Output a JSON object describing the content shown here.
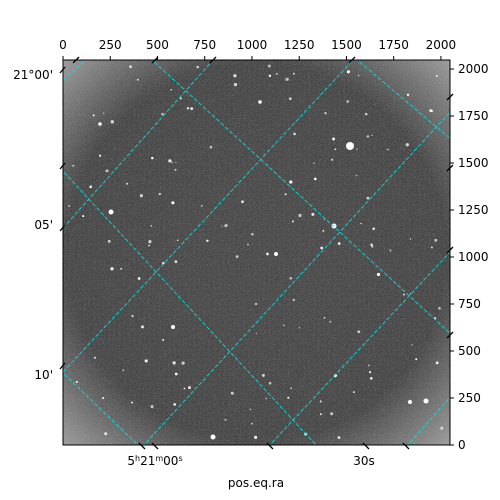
{
  "plot": {
    "xlabel": "pos.eq.ra",
    "pixel_x_ticks": [
      "0",
      "250",
      "500",
      "750",
      "1000",
      "1250",
      "1500",
      "1750",
      "2000"
    ],
    "pixel_y_ticks": [
      "0",
      "250",
      "500",
      "750",
      "1000",
      "1250",
      "1500",
      "1750",
      "2000"
    ],
    "pixel_range": [
      0,
      2048
    ],
    "dec_ticks": [
      "21°00'",
      "05'",
      "10'"
    ],
    "ra_ticks": [
      "5h21m00s",
      "30s"
    ],
    "ra_main": {
      "h": "5",
      "m": "21",
      "mm": "00",
      "s": "s"
    },
    "ra_second": "30s",
    "grid_color": "#00e5e5",
    "image_style": "noisy grayscale astronomical field with scattered stars"
  }
}
